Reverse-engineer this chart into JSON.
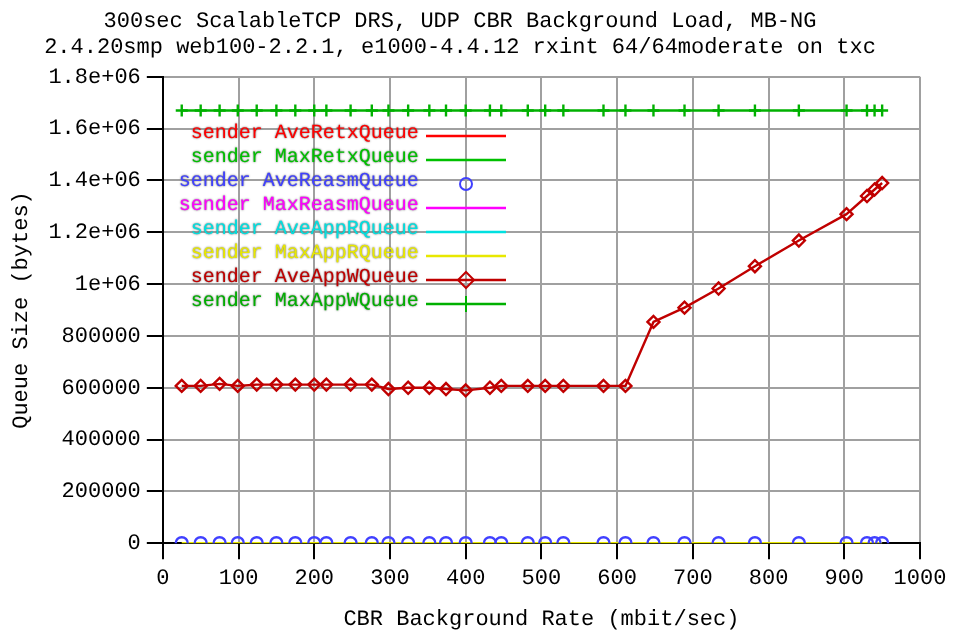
{
  "chart_data": {
    "type": "line",
    "title": "300sec ScalableTCP DRS, UDP CBR Background Load, MB-NG",
    "subtitle": "2.4.20smp web100-2.2.1, e1000-4.4.12 rxint 64/64moderate on txc",
    "xlabel": "CBR Background Rate (mbit/sec)",
    "ylabel": "Queue Size (bytes)",
    "x": [
      25,
      50,
      75,
      99,
      124,
      150,
      175,
      200,
      216,
      248,
      276,
      298,
      324,
      352,
      374,
      400,
      432,
      447,
      482,
      505,
      529,
      582,
      611,
      648,
      689,
      734,
      782,
      840,
      903,
      930,
      940,
      950
    ],
    "xlim": [
      0,
      1000
    ],
    "xticks": [
      0,
      100,
      200,
      300,
      400,
      500,
      600,
      700,
      800,
      900,
      1000
    ],
    "ylim": [
      0,
      1800000
    ],
    "yticks": [
      0,
      200000,
      400000,
      600000,
      800000,
      {
        "value": 1000000,
        "label": "1e+06"
      },
      {
        "value": 1200000,
        "label": "1.2e+06"
      },
      {
        "value": 1400000,
        "label": "1.4e+06"
      },
      {
        "value": 1600000,
        "label": "1.6e+06"
      },
      {
        "value": 1800000,
        "label": "1.8e+06"
      }
    ],
    "grid": true,
    "legend": "top left",
    "series": [
      {
        "name": "sender AveRetxQueue",
        "color": "#ff0000",
        "values": [
          null,
          null,
          null,
          null,
          null,
          null,
          null,
          null,
          null,
          null,
          null,
          null,
          null,
          null,
          null,
          null,
          null,
          null,
          null,
          null,
          null,
          null,
          null,
          null,
          null,
          null,
          null,
          null,
          null,
          null,
          null,
          null
        ]
      },
      {
        "name": "sender MaxRetxQueue",
        "color": "#00c000",
        "values": [
          null,
          null,
          null,
          null,
          null,
          null,
          null,
          null,
          null,
          null,
          null,
          null,
          null,
          null,
          null,
          null,
          null,
          null,
          null,
          null,
          null,
          null,
          null,
          null,
          null,
          null,
          null,
          null,
          null,
          null,
          null,
          null
        ]
      },
      {
        "name": "sender AveReasmQueue",
        "color": "#4040ff",
        "type": "scatter",
        "marker": "circle",
        "values": [
          0,
          0,
          0,
          0,
          0,
          0,
          0,
          0,
          0,
          0,
          0,
          0,
          0,
          0,
          0,
          0,
          0,
          0,
          0,
          0,
          0,
          0,
          0,
          0,
          0,
          0,
          0,
          0,
          0,
          0,
          0,
          0
        ]
      },
      {
        "name": "sender MaxReasmQueue",
        "color": "#ff00ff",
        "values": [
          null,
          null,
          null,
          null,
          null,
          null,
          null,
          null,
          null,
          null,
          null,
          null,
          null,
          null,
          null,
          null,
          null,
          null,
          null,
          null,
          null,
          null,
          null,
          null,
          null,
          null,
          null,
          null,
          null,
          null,
          null,
          null
        ]
      },
      {
        "name": "sender AveAppRQueue",
        "color": "#00e0e0",
        "values": [
          null,
          null,
          null,
          null,
          null,
          null,
          null,
          null,
          null,
          null,
          null,
          null,
          null,
          null,
          null,
          null,
          null,
          null,
          null,
          null,
          null,
          null,
          null,
          null,
          null,
          null,
          null,
          null,
          null,
          null,
          null,
          null
        ]
      },
      {
        "name": "sender MaxAppRQueue",
        "color": "#e8e800",
        "values": [
          0,
          0,
          0,
          0,
          0,
          0,
          0,
          0,
          0,
          0,
          0,
          0,
          0,
          0,
          0,
          0,
          0,
          0,
          0,
          0,
          0,
          0,
          0,
          0,
          0,
          0,
          0,
          0,
          0,
          0,
          0,
          0
        ]
      },
      {
        "name": "sender AveAppWQueue",
        "color": "#c00000",
        "marker": "diamond",
        "values": [
          607000,
          607000,
          615000,
          607000,
          612000,
          612000,
          612000,
          612000,
          612000,
          612000,
          612000,
          595000,
          600000,
          600000,
          595000,
          590000,
          600000,
          607000,
          607000,
          607000,
          607000,
          607000,
          607000,
          854000,
          909000,
          983000,
          1069000,
          1168000,
          1270000,
          1340000,
          1365000,
          1390000
        ]
      },
      {
        "name": "sender MaxAppWQueue",
        "color": "#00b000",
        "marker": "cross",
        "values": [
          1670000,
          1670000,
          1670000,
          1670000,
          1670000,
          1670000,
          1670000,
          1670000,
          1670000,
          1670000,
          1670000,
          1670000,
          1670000,
          1670000,
          1670000,
          1670000,
          1670000,
          1670000,
          1670000,
          1670000,
          1670000,
          1670000,
          1670000,
          1670000,
          1670000,
          1670000,
          1670000,
          1670000,
          1670000,
          1670000,
          1670000,
          1670000
        ]
      }
    ]
  }
}
